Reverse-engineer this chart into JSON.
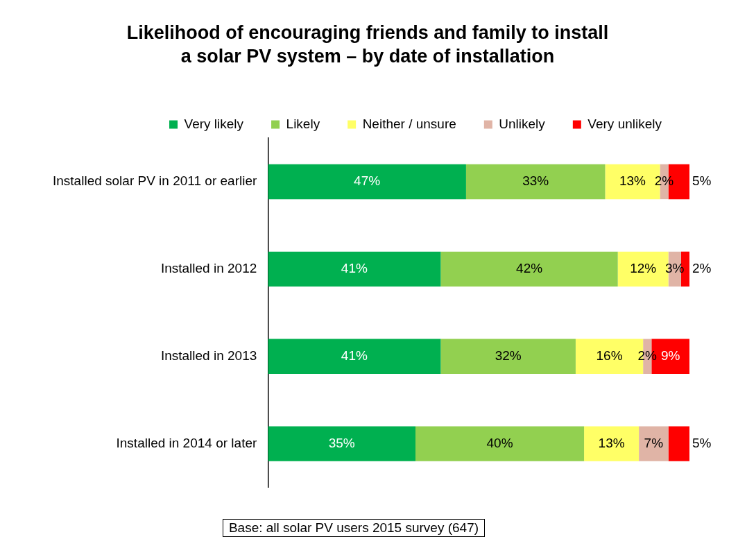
{
  "chart_data": {
    "type": "bar",
    "orientation": "horizontal",
    "stacked": true,
    "title": "Likelihood of encouraging friends and family to install a solar PV system –  by date of installation",
    "categories": [
      "Installed solar PV in 2011 or earlier",
      "Installed in 2012",
      "Installed in 2013",
      "Installed in 2014 or later"
    ],
    "series": [
      {
        "name": "Very likely",
        "color": "#00b050",
        "values": [
          47,
          41,
          41,
          35
        ],
        "value_labels": [
          "47%",
          "41%",
          "41%",
          "35%"
        ]
      },
      {
        "name": "Likely",
        "color": "#92d050",
        "values": [
          33,
          42,
          32,
          40
        ],
        "value_labels": [
          "33%",
          "42%",
          "32%",
          "40%"
        ]
      },
      {
        "name": "Neither / unsure",
        "color": "#ffff66",
        "values": [
          13,
          12,
          16,
          13
        ],
        "value_labels": [
          "13%",
          "12%",
          "16%",
          "13%"
        ]
      },
      {
        "name": "Unlikely",
        "color": "#e0b4a6",
        "values": [
          2,
          3,
          2,
          7
        ],
        "value_labels": [
          "2%",
          "3%",
          "2%",
          "7%"
        ]
      },
      {
        "name": "Very unlikely",
        "color": "#ff0000",
        "values": [
          5,
          2,
          9,
          5
        ],
        "value_labels": [
          "5%",
          "2%",
          "9%",
          "5%"
        ]
      }
    ],
    "legend": "top",
    "grid": false,
    "annotations": [
      "Base: all solar PV users 2015 survey (647)"
    ]
  }
}
